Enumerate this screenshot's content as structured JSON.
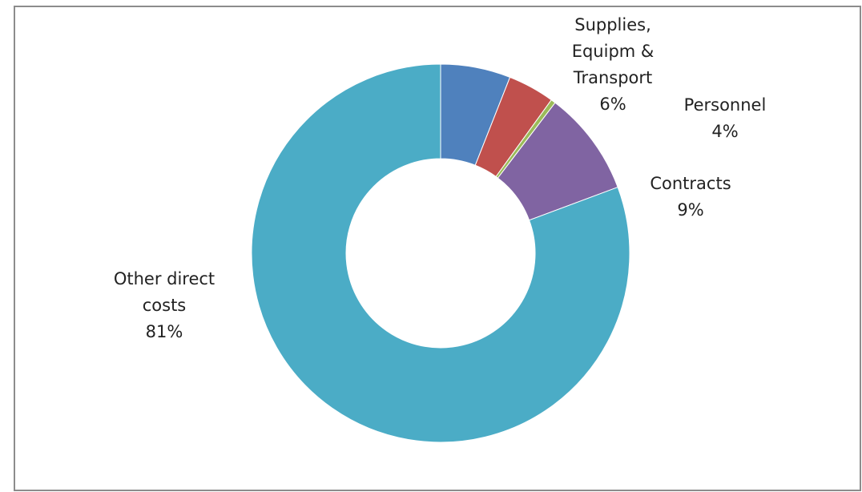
{
  "chart_data": {
    "type": "pie",
    "categories": [
      "Supplies,\nEquipm &\nTransport",
      "Personnel",
      null,
      "Contracts",
      "Other direct\ncosts"
    ],
    "values": [
      6,
      4,
      0.4,
      9,
      81
    ],
    "value_labels": [
      "6%",
      "4%",
      null,
      "9%",
      "81%"
    ],
    "colors": [
      "#4f81bd",
      "#c0504d",
      "#9bbb59",
      "#8064a2",
      "#4bacc6"
    ],
    "donut": true
  }
}
